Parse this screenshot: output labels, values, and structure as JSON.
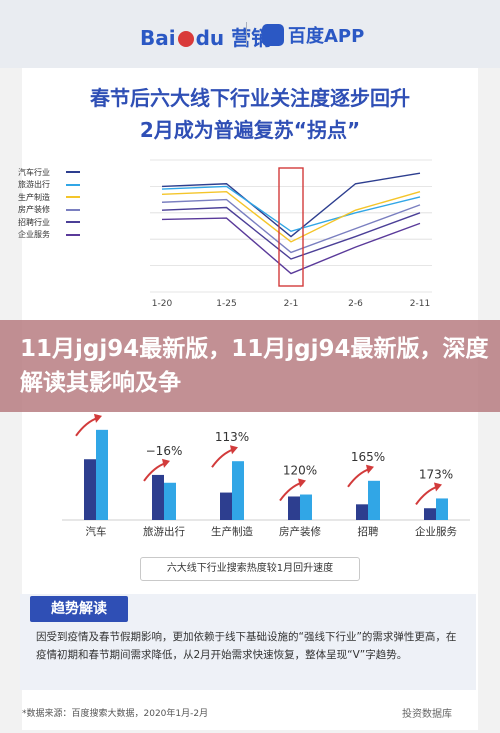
{
  "header": {
    "baidu_text": "Bai",
    "baidu_du": "du",
    "yingxiao": "营销",
    "app_text": "百度APP"
  },
  "titles": {
    "line1": "春节后六大线下行业关注度逐步回升",
    "line2": "2月成为普遍复苏“拐点”"
  },
  "banner": {
    "text": "11月jgj94最新版，11月jgj94最新版，深度解读其影响及争"
  },
  "chart_data": [
    {
      "type": "line",
      "x": [
        "1-20",
        "1-25",
        "2-1",
        "2-6",
        "2-11"
      ],
      "legend_placement": "left",
      "series": [
        {
          "name": "汽车行业",
          "color": "#2d3e8f",
          "values": [
            0.8,
            0.82,
            0.42,
            0.82,
            0.9
          ]
        },
        {
          "name": "旅游出行",
          "color": "#31a6e6",
          "values": [
            0.78,
            0.8,
            0.46,
            0.6,
            0.72
          ]
        },
        {
          "name": "生产制造",
          "color": "#f4c52a",
          "values": [
            0.74,
            0.76,
            0.38,
            0.62,
            0.76
          ]
        },
        {
          "name": "房产装修",
          "color": "#7a7fc0",
          "values": [
            0.68,
            0.7,
            0.3,
            0.48,
            0.66
          ]
        },
        {
          "name": "招聘行业",
          "color": "#4b3f97",
          "values": [
            0.62,
            0.64,
            0.25,
            0.42,
            0.6
          ]
        },
        {
          "name": "企业服务",
          "color": "#5a3a9a",
          "values": [
            0.55,
            0.56,
            0.14,
            0.34,
            0.52
          ]
        }
      ],
      "annotation": "2-1 highlighted"
    },
    {
      "type": "bar",
      "title": "六大线下行业搜索热度较1月回升速度",
      "categories": [
        "汽车",
        "旅游出行",
        "生产制造",
        "房产装修",
        "招聘",
        "企业服务"
      ],
      "series": [
        {
          "color": "#2d3e8f",
          "values": [
            0.62,
            0.46,
            0.28,
            0.24,
            0.16,
            0.12
          ]
        },
        {
          "color": "#31a6e6",
          "values": [
            0.92,
            0.38,
            0.6,
            0.26,
            0.4,
            0.22
          ]
        }
      ],
      "labels": [
        "",
        "−16%",
        "113%",
        "120%",
        "165%",
        "173%"
      ]
    }
  ],
  "trend": {
    "tag": "趋势解读",
    "text": "因受到疫情及春节假期影响，更加依赖于线下基础设施的“强线下行业”的需求弹性更高，在疫情初期和春节期间需求降低，从2月开始需求快速恢复，整体呈现“V”字趋势。"
  },
  "source": "*数据来源：百度搜索大数据，2020年1月-2月",
  "watermark": "投资数据库"
}
